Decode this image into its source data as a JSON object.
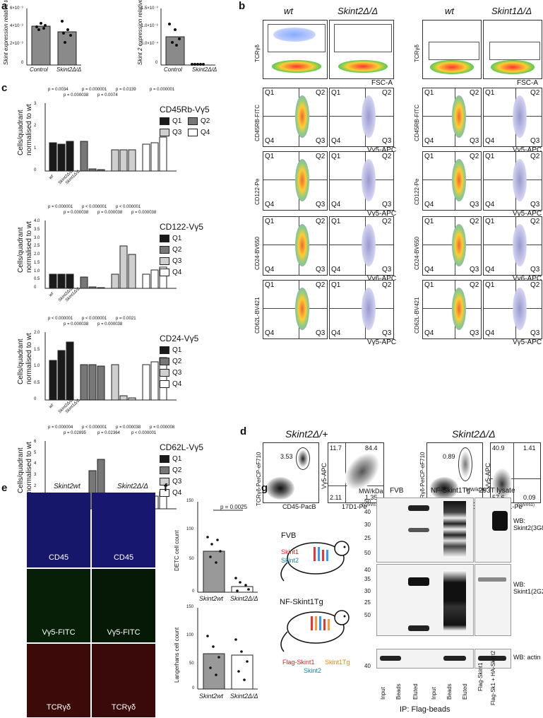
{
  "panels": {
    "a": {
      "letter": "a",
      "left": {
        "ylabel": "Skint expression relative to PpiA",
        "ticks": [
          "6×10⁻³",
          "4×10⁻³",
          "2×10⁻³",
          "0"
        ],
        "cats": [
          "Control",
          "Skint2Δ/Δ"
        ]
      },
      "right": {
        "ylabel": "Skint 2 expression relative to PpiA",
        "ticks": [
          "1.5×10⁻³",
          "1.0×10⁻³",
          "5.0×10⁻⁴",
          "0"
        ],
        "cats": [
          "Control",
          "Skint2Δ/Δ"
        ]
      }
    },
    "b": {
      "letter": "b",
      "headers": [
        "wt",
        "Skint2Δ/Δ",
        "wt",
        "Skint1Δ/Δ"
      ],
      "row_ylabels": [
        "TCRγδ",
        "CD45RB-FITC",
        "CD122-Pe",
        "CD24-BV650",
        "CD62L-BV421"
      ],
      "xlabels": [
        "FSC-A",
        "Vγ5-APC",
        "Vγ5-APC",
        "Vγ6-APC",
        "Vγ5-APC"
      ],
      "quadrants": [
        "Q1",
        "Q2",
        "Q3",
        "Q4"
      ]
    },
    "c": {
      "letter": "c",
      "ylabel1": "Cells/quadrant",
      "ylabel2": "normalised to wt",
      "xcats": [
        "wt",
        "Skint2Δ/Δ",
        "Skint1Δ/Δ"
      ],
      "legend_items": [
        "Q1",
        "Q2",
        "Q3",
        "Q4"
      ],
      "charts": [
        {
          "title": "CD45Rb-Vγ5",
          "pvals_top": [
            "p = 0.0034",
            "p = 0.000001",
            "p = 0.0139",
            "p = 0.000001"
          ],
          "pvals_bot": [
            "p = 0.000038",
            "p = 0.0074"
          ],
          "yticks": [
            "3",
            "2",
            "1",
            "0"
          ]
        },
        {
          "title": "CD122-Vγ5",
          "pvals_top": [
            "p = 0.000001",
            "p < 0.000001",
            "p < 0.000001"
          ],
          "pvals_bot": [
            "p = 0.000038",
            "p = 0.000038",
            "p = 0.000038"
          ],
          "yticks": [
            "4.0",
            "3.5",
            "3.0",
            "2.5",
            "2.0",
            "1.5",
            "1.0",
            "0.5",
            "0"
          ]
        },
        {
          "title": "CD24-Vγ5",
          "pvals_top": [
            "p < 0.000001",
            "p < 0.000001",
            "p = 0.0021"
          ],
          "pvals_bot": [
            "p = 0.000038",
            "p = 0.000038"
          ],
          "yticks": [
            "2.0",
            "1.5",
            "1.0",
            "0.5",
            "0"
          ]
        },
        {
          "title": "CD62L-Vγ5",
          "pvals_top": [
            "p = 0.000004",
            "p < 0.000001",
            "p = 0.000038",
            "p = 0.000008"
          ],
          "pvals_bot": [
            "p = 0.02895",
            "p = 0.02364",
            "p < 0.000001"
          ],
          "yticks": [
            "6",
            "5",
            "4",
            "3",
            "2",
            "1",
            "0"
          ]
        }
      ],
      "colors": {
        "Q1": "#1a1a1a",
        "Q2": "#777777",
        "Q3": "#cfcfcf",
        "Q4": "#ffffff"
      }
    },
    "d": {
      "letter": "d",
      "titles": [
        "Skint2Δ/+",
        "Skint2Δ/Δ"
      ],
      "yl_tcr": "TCRγδ-PerCP-eF710",
      "xl_cd45": "CD45-PacB",
      "yl_vg5": "Vγ5-APC",
      "xl_17d1": "17D1-Pe",
      "vd": "(Vγ5Vδ1)",
      "left_gate": "3.53",
      "left_quads": [
        "11.7",
        "84.4",
        "2.11",
        "1.35"
      ],
      "right_gate": "0.89",
      "right_quads": [
        "40.9",
        "1.41",
        "57.6",
        "0.09"
      ]
    },
    "e": {
      "letter": "e",
      "cols": [
        "Skint2wt",
        "Skint2Δ/Δ"
      ],
      "rows": [
        "CD45",
        "Vγ5-FITC",
        "TCRγδ"
      ]
    },
    "f": {
      "letter": "f",
      "top_ylabel": "DETC cell count",
      "top_ticks": [
        "150",
        "100",
        "50",
        "0"
      ],
      "pval": "p = 0.0025",
      "bot_ylabel": "Langerhans cell count",
      "bot_ticks": [
        "150",
        "100",
        "50",
        "0"
      ],
      "cats": [
        "Skint2wt",
        "Skint2Δ/Δ"
      ]
    },
    "g": {
      "letter": "g",
      "mouse1": "FVB",
      "mouse1_genes": [
        "Skint1",
        "Skint2"
      ],
      "mouse2": "NF-Skint1Tg",
      "mouse2_genes": [
        "Flag-Skint1",
        "Skint1Tg",
        "Skint2"
      ],
      "mwkda": "MW/kDa",
      "groups": [
        "FVB",
        "NF-Skint1Tg",
        "293T lysate"
      ],
      "mw_left": [
        "50",
        "40",
        "30",
        "25",
        "50",
        "40",
        "35",
        "30",
        "25",
        "50",
        "40"
      ],
      "lanes": [
        "Input",
        "Beads",
        "Eluted",
        "Input",
        "Beads",
        "Eluted"
      ],
      "lane_293": [
        "Flag-Skint1",
        "Flag-Sk1 + HA-Skint2"
      ],
      "wb": [
        "WB: Skint2(3G8)",
        "WB: Skint1(2G2)",
        "WB: actin"
      ],
      "ip": "IP: Flag-beads"
    }
  }
}
